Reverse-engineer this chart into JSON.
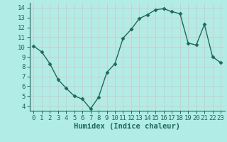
{
  "x": [
    0,
    1,
    2,
    3,
    4,
    5,
    6,
    7,
    8,
    9,
    10,
    11,
    12,
    13,
    14,
    15,
    16,
    17,
    18,
    19,
    20,
    21,
    22,
    23
  ],
  "y": [
    10.1,
    9.5,
    8.3,
    6.7,
    5.8,
    5.0,
    4.7,
    3.7,
    4.9,
    7.4,
    8.3,
    10.9,
    11.8,
    12.9,
    13.3,
    13.8,
    13.9,
    13.6,
    13.4,
    10.4,
    10.2,
    12.3,
    9.0,
    8.4
  ],
  "line_color": "#1a6b5a",
  "marker": "D",
  "markersize": 2.5,
  "linewidth": 1.0,
  "background_color": "#b2ece6",
  "grid_color": "#c8e8e4",
  "xlabel": "Humidex (Indice chaleur)",
  "xlabel_fontsize": 7.5,
  "tick_fontsize": 6.5,
  "xlim": [
    -0.5,
    23.5
  ],
  "ylim": [
    3.5,
    14.5
  ],
  "yticks": [
    4,
    5,
    6,
    7,
    8,
    9,
    10,
    11,
    12,
    13,
    14
  ],
  "xticks": [
    0,
    1,
    2,
    3,
    4,
    5,
    6,
    7,
    8,
    9,
    10,
    11,
    12,
    13,
    14,
    15,
    16,
    17,
    18,
    19,
    20,
    21,
    22,
    23
  ],
  "spine_color": "#1a6b5a",
  "tick_color": "#1a6b5a"
}
